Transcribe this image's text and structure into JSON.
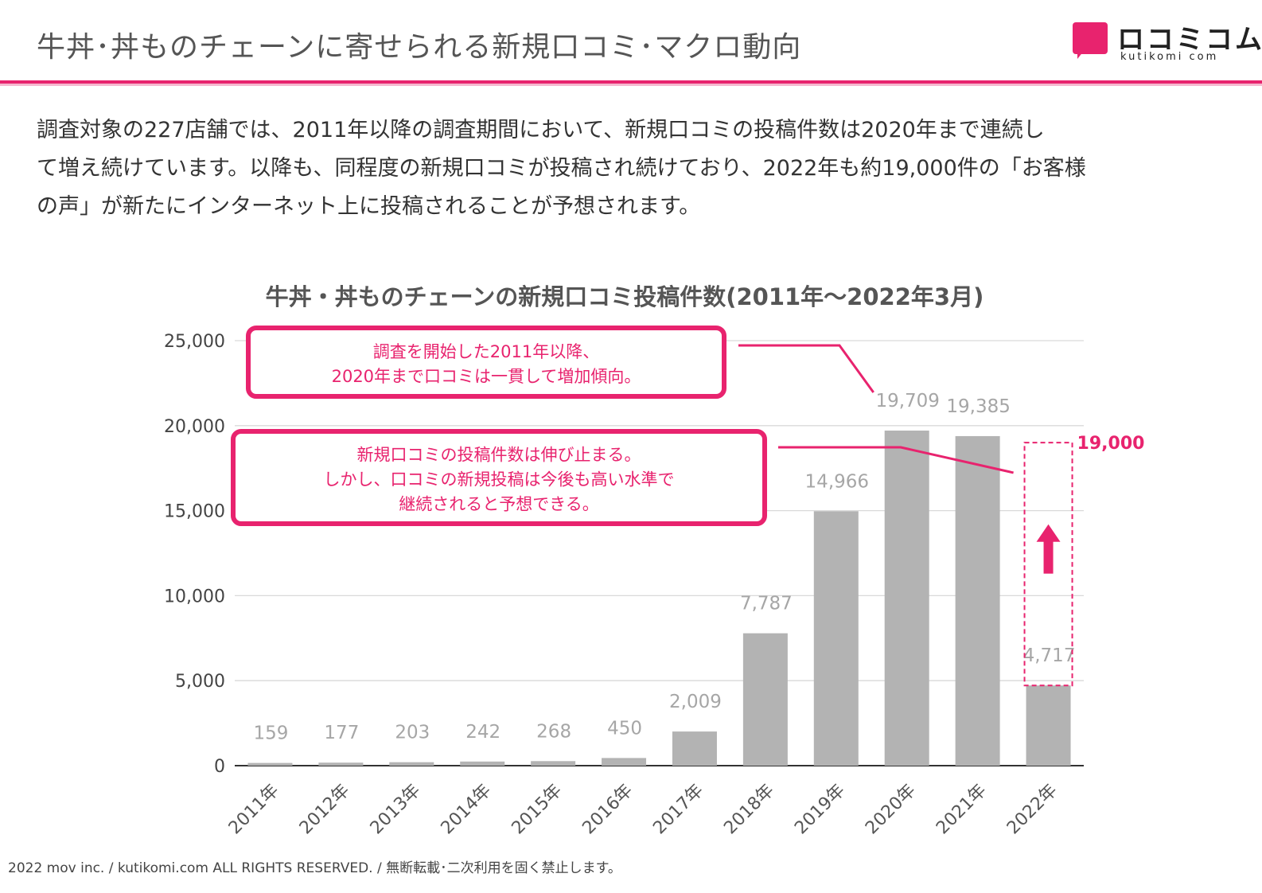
{
  "page": {
    "title": "牛丼･丼ものチェーンに寄せられる新規口コミ･マクロ動向",
    "intro_lines": [
      "調査対象の227店舗では、2011年以降の調査期間において、新規口コミの投稿件数は2020年まで連続し",
      "て増え続けています。以降も、同程度の新規口コミが投稿され続けており、2022年も約19,000件の「お客様",
      "の声」が新たにインターネット上に投稿されることが予想されます。"
    ],
    "footer": "2022 mov inc. / kutikomi.com ALL RIGHTS RESERVED. / 無断転載･二次利用を固く禁止します。"
  },
  "logo": {
    "name": "ロコミコム",
    "sub": "kutikomi com",
    "color": "#e8236e"
  },
  "colors": {
    "accent": "#e8236e",
    "bar": "#b3b3b3",
    "label": "#a6a6a6",
    "grid": "#d9d9d9"
  },
  "chart_data": {
    "type": "bar",
    "title": "牛丼・丼ものチェーンの新規口コミ投稿件数(2011年～2022年3月)",
    "categories": [
      "2011年",
      "2012年",
      "2013年",
      "2014年",
      "2015年",
      "2016年",
      "2017年",
      "2018年",
      "2019年",
      "2020年",
      "2021年",
      "2022年"
    ],
    "values": [
      159,
      177,
      203,
      242,
      268,
      450,
      2009,
      7787,
      14966,
      19709,
      19385,
      4717
    ],
    "value_labels": [
      "159",
      "177",
      "203",
      "242",
      "268",
      "450",
      "2,009",
      "7,787",
      "14,966",
      "19,709",
      "19,385",
      "4,717"
    ],
    "ylim": [
      0,
      25000
    ],
    "yticks": [
      0,
      5000,
      10000,
      15000,
      20000,
      25000
    ],
    "ytick_labels": [
      "0",
      "5,000",
      "10,000",
      "15,000",
      "20,000",
      "25,000"
    ],
    "grid": true,
    "forecast": {
      "category": "2022年",
      "value": 19000,
      "label": "19,000"
    },
    "annotations": [
      {
        "lines": [
          "調査を開始した2011年以降、",
          "2020年まで口コミは一貫して増加傾向。"
        ],
        "points_to": "2020年"
      },
      {
        "lines": [
          "新規口コミの投稿件数は伸び止まる。",
          "しかし、口コミの新規投稿は今後も高い水準で",
          "継続されると予想できる。"
        ],
        "points_to": "2021年"
      }
    ]
  }
}
